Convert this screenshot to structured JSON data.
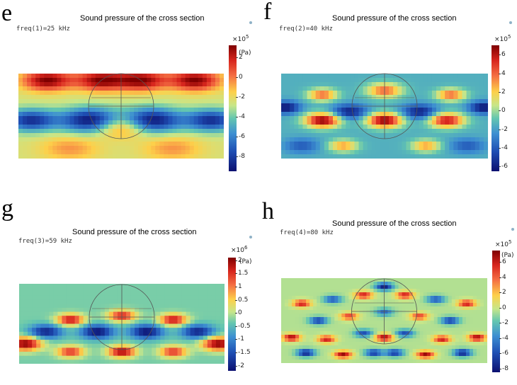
{
  "colors": {
    "dark_red": "#7f0000",
    "red": "#d7261e",
    "orange": "#f46d43",
    "yellow": "#fdd04a",
    "lime": "#c6e68a",
    "cyan": "#63c6b0",
    "blue": "#3d8fd1",
    "dark_blue": "#0c1070"
  },
  "chart_data": [
    {
      "type": "heatmap",
      "panel_letter": "e",
      "title": "Sound pressure of the cross section",
      "param_label": "freq(1)=25 kHz",
      "colorbar": {
        "multiplier_base": "×10",
        "multiplier_exp": "5",
        "unit": "(Pa)",
        "range": [
          -9.5,
          3.2
        ],
        "ticks": [
          {
            "value": 2,
            "label": "2"
          },
          {
            "value": 0,
            "label": "0"
          },
          {
            "value": -2,
            "label": "-2"
          },
          {
            "value": -4,
            "label": "-4"
          },
          {
            "value": -6,
            "label": "-6"
          },
          {
            "value": -8,
            "label": "-8"
          }
        ]
      },
      "field": {
        "background": -2.5,
        "blobs": [
          {
            "x": 0.14,
            "y": 0.08,
            "v": 3.2,
            "r": 0.085
          },
          {
            "x": 0.4,
            "y": 0.08,
            "v": 3.0,
            "r": 0.085
          },
          {
            "x": 0.6,
            "y": 0.08,
            "v": 3.0,
            "r": 0.085
          },
          {
            "x": 0.86,
            "y": 0.08,
            "v": 3.2,
            "r": 0.085
          },
          {
            "x": 0.06,
            "y": 0.55,
            "v": -8.5,
            "r": 0.09
          },
          {
            "x": 0.35,
            "y": 0.55,
            "v": -9.5,
            "r": 0.1
          },
          {
            "x": 0.65,
            "y": 0.55,
            "v": -9.5,
            "r": 0.1
          },
          {
            "x": 0.94,
            "y": 0.55,
            "v": -8.5,
            "r": 0.09
          },
          {
            "x": 0.5,
            "y": 0.62,
            "v": 1.2,
            "r": 0.09
          },
          {
            "x": 0.25,
            "y": 0.88,
            "v": -0.5,
            "r": 0.1
          },
          {
            "x": 0.75,
            "y": 0.88,
            "v": -0.5,
            "r": 0.1
          }
        ]
      }
    },
    {
      "type": "heatmap",
      "panel_letter": "f",
      "title": "Sound pressure of the cross section",
      "param_label": "freq(2)=40 kHz",
      "colorbar": {
        "multiplier_base": "×10",
        "multiplier_exp": "5",
        "unit": "",
        "range": [
          -6.5,
          7
        ],
        "ticks": [
          {
            "value": 6,
            "label": "6"
          },
          {
            "value": 4,
            "label": "4"
          },
          {
            "value": 2,
            "label": "2"
          },
          {
            "value": 0,
            "label": "0"
          },
          {
            "value": -2,
            "label": "-2"
          },
          {
            "value": -4,
            "label": "-4"
          },
          {
            "value": -6,
            "label": "-6"
          }
        ]
      },
      "field": {
        "background": -1.5,
        "blobs": [
          {
            "x": 0.2,
            "y": 0.55,
            "v": 7,
            "r": 0.06
          },
          {
            "x": 0.5,
            "y": 0.55,
            "v": 7,
            "r": 0.06
          },
          {
            "x": 0.8,
            "y": 0.55,
            "v": 6,
            "r": 0.06
          },
          {
            "x": 0.2,
            "y": 0.25,
            "v": 4,
            "r": 0.05
          },
          {
            "x": 0.82,
            "y": 0.25,
            "v": 4,
            "r": 0.05
          },
          {
            "x": 0.33,
            "y": 0.45,
            "v": -6,
            "r": 0.06
          },
          {
            "x": 0.67,
            "y": 0.45,
            "v": -6,
            "r": 0.06
          },
          {
            "x": 0.02,
            "y": 0.4,
            "v": -6.5,
            "r": 0.05
          },
          {
            "x": 0.98,
            "y": 0.4,
            "v": -6.5,
            "r": 0.05
          },
          {
            "x": 0.5,
            "y": 0.2,
            "v": 4,
            "r": 0.06
          },
          {
            "x": 0.1,
            "y": 0.85,
            "v": -4,
            "r": 0.06
          },
          {
            "x": 0.3,
            "y": 0.85,
            "v": 3,
            "r": 0.05
          },
          {
            "x": 0.7,
            "y": 0.85,
            "v": 3,
            "r": 0.05
          },
          {
            "x": 0.9,
            "y": 0.85,
            "v": -4,
            "r": 0.06
          }
        ]
      }
    },
    {
      "type": "heatmap",
      "panel_letter": "g",
      "title": "Sound pressure of the cross section",
      "param_label": "freq(3)=59 kHz",
      "colorbar": {
        "multiplier_base": "×10",
        "multiplier_exp": "6",
        "unit": "(Pa)",
        "range": [
          -2.2,
          2.1
        ],
        "ticks": [
          {
            "value": 2,
            "label": "2"
          },
          {
            "value": 1.5,
            "label": "1.5"
          },
          {
            "value": 1,
            "label": "1"
          },
          {
            "value": 0.5,
            "label": "0.5"
          },
          {
            "value": 0,
            "label": "0"
          },
          {
            "value": -0.5,
            "label": "-0.5"
          },
          {
            "value": -1,
            "label": "-1"
          },
          {
            "value": -1.5,
            "label": "-1.5"
          },
          {
            "value": -2,
            "label": "-2"
          }
        ]
      },
      "field": {
        "background": -0.3,
        "blobs": [
          {
            "x": 0.03,
            "y": 0.75,
            "v": 2.1,
            "r": 0.06
          },
          {
            "x": 0.25,
            "y": 0.45,
            "v": 1.8,
            "r": 0.05
          },
          {
            "x": 0.25,
            "y": 0.85,
            "v": 1.5,
            "r": 0.05
          },
          {
            "x": 0.5,
            "y": 0.4,
            "v": 1.6,
            "r": 0.05
          },
          {
            "x": 0.5,
            "y": 0.85,
            "v": 2.0,
            "r": 0.05
          },
          {
            "x": 0.75,
            "y": 0.45,
            "v": 1.8,
            "r": 0.05
          },
          {
            "x": 0.75,
            "y": 0.85,
            "v": 1.5,
            "r": 0.05
          },
          {
            "x": 0.97,
            "y": 0.75,
            "v": 2.1,
            "r": 0.06
          },
          {
            "x": 0.13,
            "y": 0.6,
            "v": -2.0,
            "r": 0.06
          },
          {
            "x": 0.38,
            "y": 0.6,
            "v": -2.2,
            "r": 0.06
          },
          {
            "x": 0.62,
            "y": 0.6,
            "v": -2.2,
            "r": 0.06
          },
          {
            "x": 0.87,
            "y": 0.6,
            "v": -2.0,
            "r": 0.06
          }
        ]
      }
    },
    {
      "type": "heatmap",
      "panel_letter": "h",
      "title": "Sound pressure of the cross section",
      "param_label": "freq(4)=80 kHz",
      "colorbar": {
        "multiplier_base": "×10",
        "multiplier_exp": "5",
        "unit": "(Pa)",
        "range": [
          -8.5,
          7.5
        ],
        "ticks": [
          {
            "value": 6,
            "label": "6"
          },
          {
            "value": 4,
            "label": "4"
          },
          {
            "value": 2,
            "label": "2"
          },
          {
            "value": 0,
            "label": "0"
          },
          {
            "value": -2,
            "label": "-2"
          },
          {
            "value": -4,
            "label": "-4"
          },
          {
            "value": -6,
            "label": "-6"
          },
          {
            "value": -8,
            "label": "-8"
          }
        ]
      },
      "field": {
        "background": -0.5,
        "blobs": [
          {
            "x": 0.1,
            "y": 0.3,
            "v": 6,
            "r": 0.03
          },
          {
            "x": 0.25,
            "y": 0.25,
            "v": -6,
            "r": 0.03
          },
          {
            "x": 0.4,
            "y": 0.2,
            "v": 6,
            "r": 0.03
          },
          {
            "x": 0.5,
            "y": 0.1,
            "v": -8,
            "r": 0.03
          },
          {
            "x": 0.6,
            "y": 0.2,
            "v": 6,
            "r": 0.03
          },
          {
            "x": 0.75,
            "y": 0.25,
            "v": -6,
            "r": 0.03
          },
          {
            "x": 0.9,
            "y": 0.3,
            "v": 6,
            "r": 0.03
          },
          {
            "x": 0.18,
            "y": 0.5,
            "v": -7,
            "r": 0.03
          },
          {
            "x": 0.33,
            "y": 0.45,
            "v": 5,
            "r": 0.03
          },
          {
            "x": 0.5,
            "y": 0.4,
            "v": -5,
            "r": 0.03
          },
          {
            "x": 0.67,
            "y": 0.45,
            "v": 5,
            "r": 0.03
          },
          {
            "x": 0.82,
            "y": 0.5,
            "v": -7,
            "r": 0.03
          },
          {
            "x": 0.05,
            "y": 0.7,
            "v": 7,
            "r": 0.03
          },
          {
            "x": 0.22,
            "y": 0.72,
            "v": 6,
            "r": 0.03
          },
          {
            "x": 0.4,
            "y": 0.65,
            "v": -6,
            "r": 0.03
          },
          {
            "x": 0.5,
            "y": 0.7,
            "v": 7,
            "r": 0.03
          },
          {
            "x": 0.6,
            "y": 0.65,
            "v": -6,
            "r": 0.03
          },
          {
            "x": 0.78,
            "y": 0.72,
            "v": 6,
            "r": 0.03
          },
          {
            "x": 0.95,
            "y": 0.7,
            "v": 7,
            "r": 0.03
          },
          {
            "x": 0.12,
            "y": 0.88,
            "v": -8,
            "r": 0.03
          },
          {
            "x": 0.3,
            "y": 0.9,
            "v": 7,
            "r": 0.03
          },
          {
            "x": 0.45,
            "y": 0.88,
            "v": -7,
            "r": 0.03
          },
          {
            "x": 0.55,
            "y": 0.88,
            "v": -7,
            "r": 0.03
          },
          {
            "x": 0.7,
            "y": 0.9,
            "v": 7,
            "r": 0.03
          },
          {
            "x": 0.88,
            "y": 0.88,
            "v": -8,
            "r": 0.03
          }
        ]
      }
    }
  ]
}
